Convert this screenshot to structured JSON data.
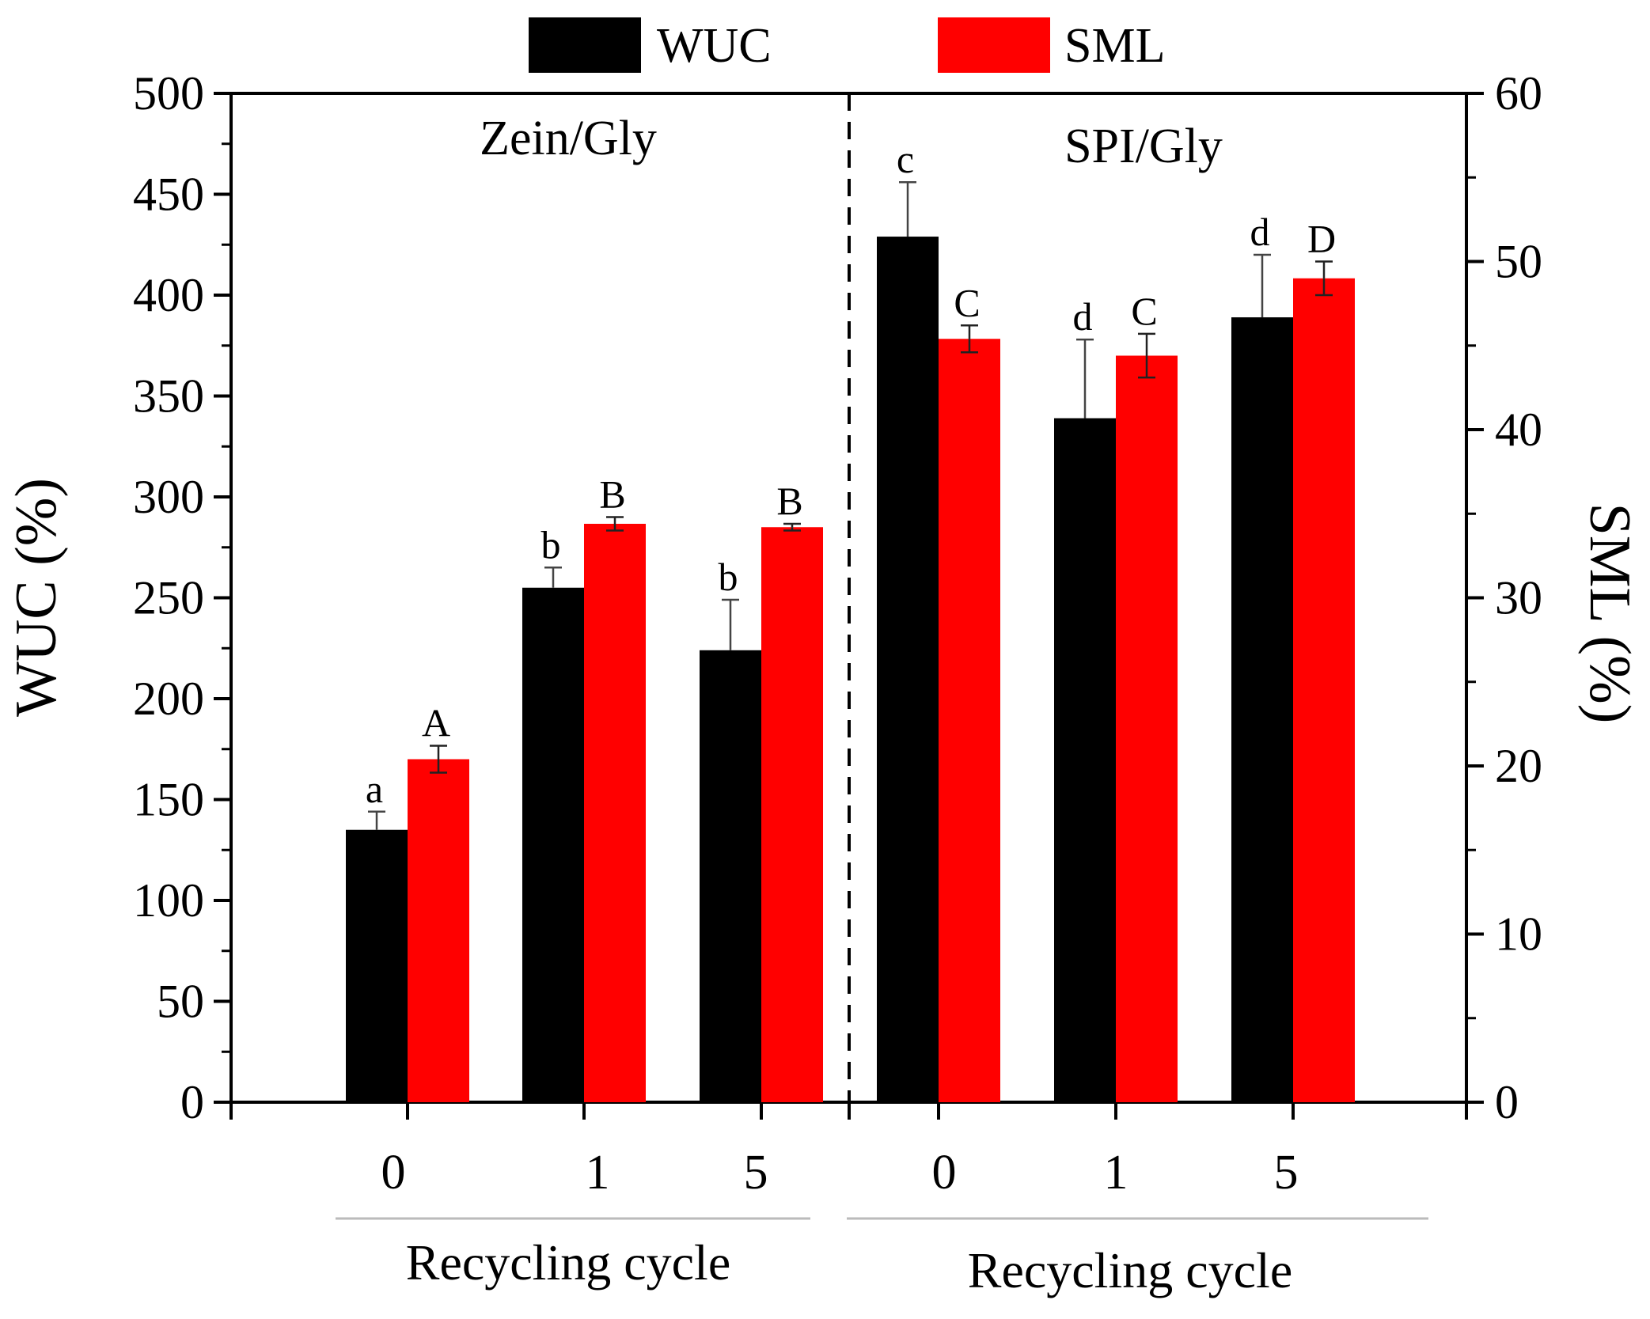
{
  "chart_data": {
    "type": "bar",
    "legend": {
      "placement": "top-center",
      "entries": [
        "WUC",
        "SML"
      ]
    },
    "colors": {
      "wuc": "#000000",
      "sml": "#ff0000",
      "axis": "#000000"
    },
    "axes": {
      "left": {
        "label": "WUC (%)",
        "ylim": [
          0,
          500
        ],
        "ticks": [
          "0",
          "50",
          "100",
          "150",
          "200",
          "250",
          "300",
          "350",
          "400",
          "450",
          "500"
        ]
      },
      "right": {
        "label": "SML (%)",
        "ylim": [
          0,
          60
        ],
        "ticks": [
          "0",
          "10",
          "20",
          "30",
          "40",
          "50",
          "60"
        ]
      }
    },
    "x_axis_label": "Recycling cycle",
    "groups": [
      {
        "name": "Zein/Gly",
        "x_axis_label": "Recycling cycle",
        "categories": [
          "0",
          "1",
          "5"
        ],
        "series": [
          {
            "name": "WUC",
            "axis": "left",
            "values": [
              135,
              255,
              224
            ],
            "errors": [
              9,
              10,
              25
            ],
            "labels": [
              "a",
              "b",
              "b"
            ]
          },
          {
            "name": "SML",
            "axis": "right",
            "values": [
              20.4,
              34.4,
              34.2
            ],
            "errors": [
              0.8,
              0.4,
              0.2
            ],
            "labels": [
              "A",
              "B",
              "B"
            ]
          }
        ]
      },
      {
        "name": "SPI/Gly",
        "x_axis_label": "Recycling cycle",
        "categories": [
          "0",
          "1",
          "5"
        ],
        "series": [
          {
            "name": "WUC",
            "axis": "left",
            "values": [
              429,
              339,
              389
            ],
            "errors": [
              27,
              39,
              31
            ],
            "labels": [
              "c",
              "d",
              "d"
            ]
          },
          {
            "name": "SML",
            "axis": "right",
            "values": [
              45.4,
              44.4,
              49.0
            ],
            "errors": [
              0.8,
              1.3,
              1.0
            ],
            "labels": [
              "C",
              "C",
              "D"
            ]
          }
        ]
      }
    ]
  }
}
